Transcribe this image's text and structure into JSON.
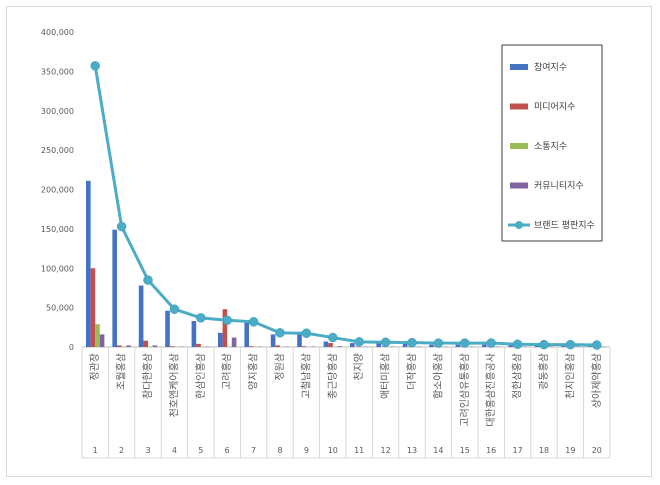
{
  "chart_data": {
    "type": "bar",
    "title": "",
    "xlabel": "",
    "ylabel": "",
    "ylim": [
      0,
      400000
    ],
    "yticks": [
      "0",
      "50,000",
      "100,000",
      "150,000",
      "200,000",
      "250,000",
      "300,000",
      "350,000",
      "400,000"
    ],
    "ranks": [
      "1",
      "2",
      "3",
      "4",
      "5",
      "6",
      "7",
      "8",
      "9",
      "10",
      "11",
      "12",
      "13",
      "14",
      "15",
      "16",
      "17",
      "18",
      "19",
      "20"
    ],
    "categories": [
      "정관장",
      "조월홍삼",
      "참다한홍삼",
      "천호엔케어홍삼",
      "한삼인홍삼",
      "고려홍삼",
      "양지홍삼",
      "정원삼",
      "고철남홍삼",
      "종근당홍삼",
      "천지양",
      "애터미홍삼",
      "더작홍삼",
      "함소아홍삼",
      "고려인삼유통홍삼",
      "대한홍삼진흥공사",
      "정한삼홍삼",
      "광동홍삼",
      "천지인홍삼",
      "상아제약홍삼"
    ],
    "legend_position": "top-right",
    "grid": false,
    "series": [
      {
        "name": "참여지수",
        "kind": "bar",
        "color": "#4472c4",
        "values": [
          211000,
          149000,
          78000,
          46000,
          33000,
          18000,
          31000,
          16000,
          16000,
          7000,
          5000,
          5000,
          4000,
          3000,
          3000,
          3000,
          3000,
          2000,
          2000,
          1500
        ]
      },
      {
        "name": "미디어지수",
        "kind": "bar",
        "color": "#c0504d",
        "values": [
          100000,
          2000,
          8000,
          1000,
          4000,
          48000,
          1000,
          2000,
          1000,
          5000,
          500,
          500,
          500,
          500,
          500,
          500,
          300,
          300,
          300,
          300
        ]
      },
      {
        "name": "소통지수",
        "kind": "bar",
        "color": "#9bbb59",
        "values": [
          29000,
          500,
          500,
          300,
          300,
          200,
          200,
          100,
          100,
          100,
          100,
          100,
          100,
          100,
          100,
          100,
          100,
          100,
          100,
          100
        ]
      },
      {
        "name": "커뮤니티지수",
        "kind": "bar",
        "color": "#8064a2",
        "values": [
          16000,
          2000,
          2000,
          500,
          500,
          12000,
          500,
          500,
          500,
          1000,
          500,
          500,
          500,
          500,
          500,
          500,
          500,
          500,
          500,
          500
        ]
      },
      {
        "name": "브랜드 평판지수",
        "kind": "line",
        "color": "#4bacc6",
        "values": [
          357000,
          153000,
          85000,
          48000,
          37000,
          34000,
          32000,
          18000,
          17500,
          12000,
          6500,
          6000,
          5500,
          5000,
          5000,
          5000,
          3500,
          3000,
          3000,
          2500
        ]
      }
    ]
  }
}
